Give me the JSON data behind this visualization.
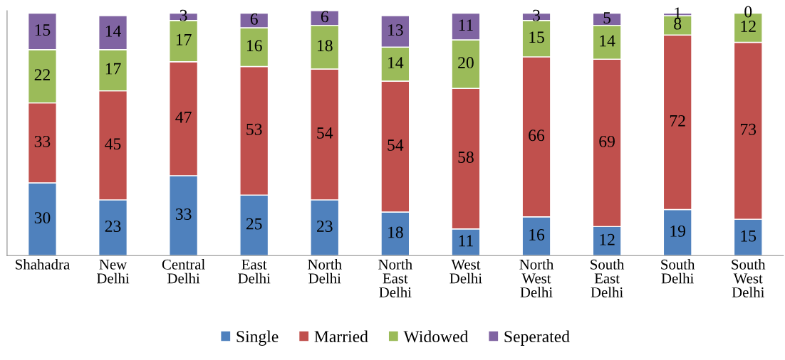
{
  "chart_data": {
    "type": "bar",
    "stacked": true,
    "data_labels": true,
    "legend": "bottom",
    "grid": false,
    "tick_labels": "x",
    "ylim": [
      0,
      101
    ],
    "categories": [
      "Shahadra",
      "New\nDelhi",
      "Central\nDelhi",
      "East\nDelhi",
      "North\nDelhi",
      "North\nEast\nDelhi",
      "West\nDelhi",
      "North\nWest\nDelhi",
      "South\nEast\nDelhi",
      "South\nDelhi",
      "South\nWest\nDelhi"
    ],
    "series": [
      {
        "name": "Single",
        "color": "#4f81bd",
        "values": [
          30,
          23,
          33,
          25,
          23,
          18,
          11,
          16,
          12,
          19,
          15
        ]
      },
      {
        "name": "Married",
        "color": "#c0504d",
        "values": [
          33,
          45,
          47,
          53,
          54,
          54,
          58,
          66,
          69,
          72,
          73
        ]
      },
      {
        "name": "Widowed",
        "color": "#9bbb59",
        "values": [
          22,
          17,
          17,
          16,
          18,
          14,
          20,
          15,
          14,
          8,
          12
        ]
      },
      {
        "name": "Seperated",
        "color": "#8064a2",
        "values": [
          15,
          14,
          3,
          6,
          6,
          13,
          11,
          3,
          5,
          1,
          0
        ]
      }
    ]
  }
}
